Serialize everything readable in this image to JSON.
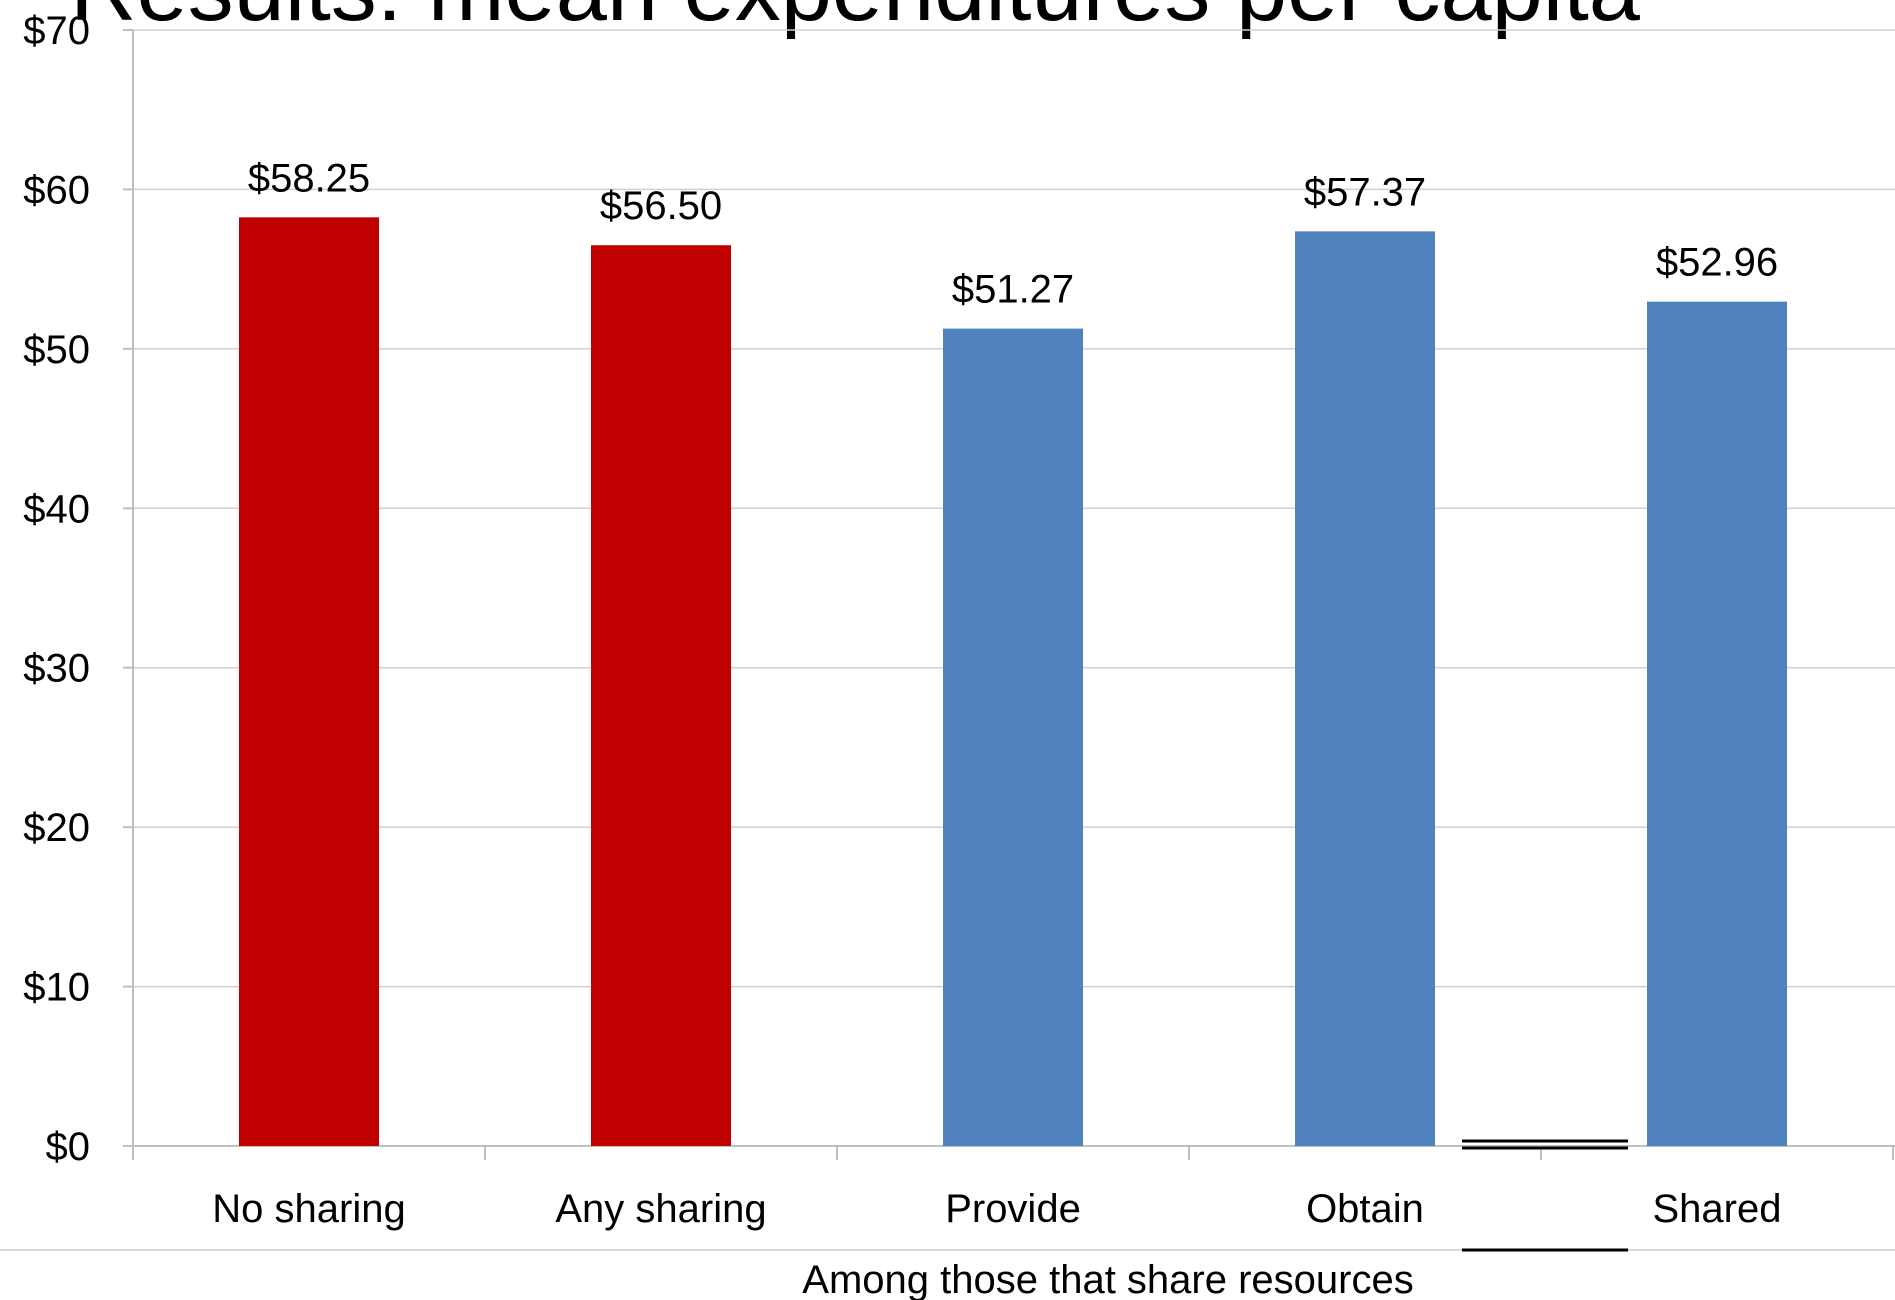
{
  "title": "Results: mean expenditures per capita",
  "annotation": "Among those that share resources",
  "chart_data": {
    "type": "bar",
    "title": "Results: mean expenditures per capita",
    "xlabel": "",
    "ylabel": "",
    "categories": [
      "No sharing",
      "Any sharing",
      "Provide",
      "Obtain",
      "Shared"
    ],
    "values": [
      58.25,
      56.5,
      51.27,
      57.37,
      52.96
    ],
    "data_labels": [
      "$58.25",
      "$56.50",
      "$51.27",
      "$57.37",
      "$52.96"
    ],
    "bar_colors": [
      "#C00000",
      "#C00000",
      "#4F81BD",
      "#4F81BD",
      "#4F81BD"
    ],
    "ylim": [
      0,
      70
    ],
    "yticks": [
      0,
      10,
      20,
      30,
      40,
      50,
      60,
      70
    ],
    "ytick_labels": [
      "$0",
      "$10",
      "$20",
      "$30",
      "$40",
      "$50",
      "$60",
      "$70"
    ],
    "grid": true,
    "legend": "none"
  }
}
